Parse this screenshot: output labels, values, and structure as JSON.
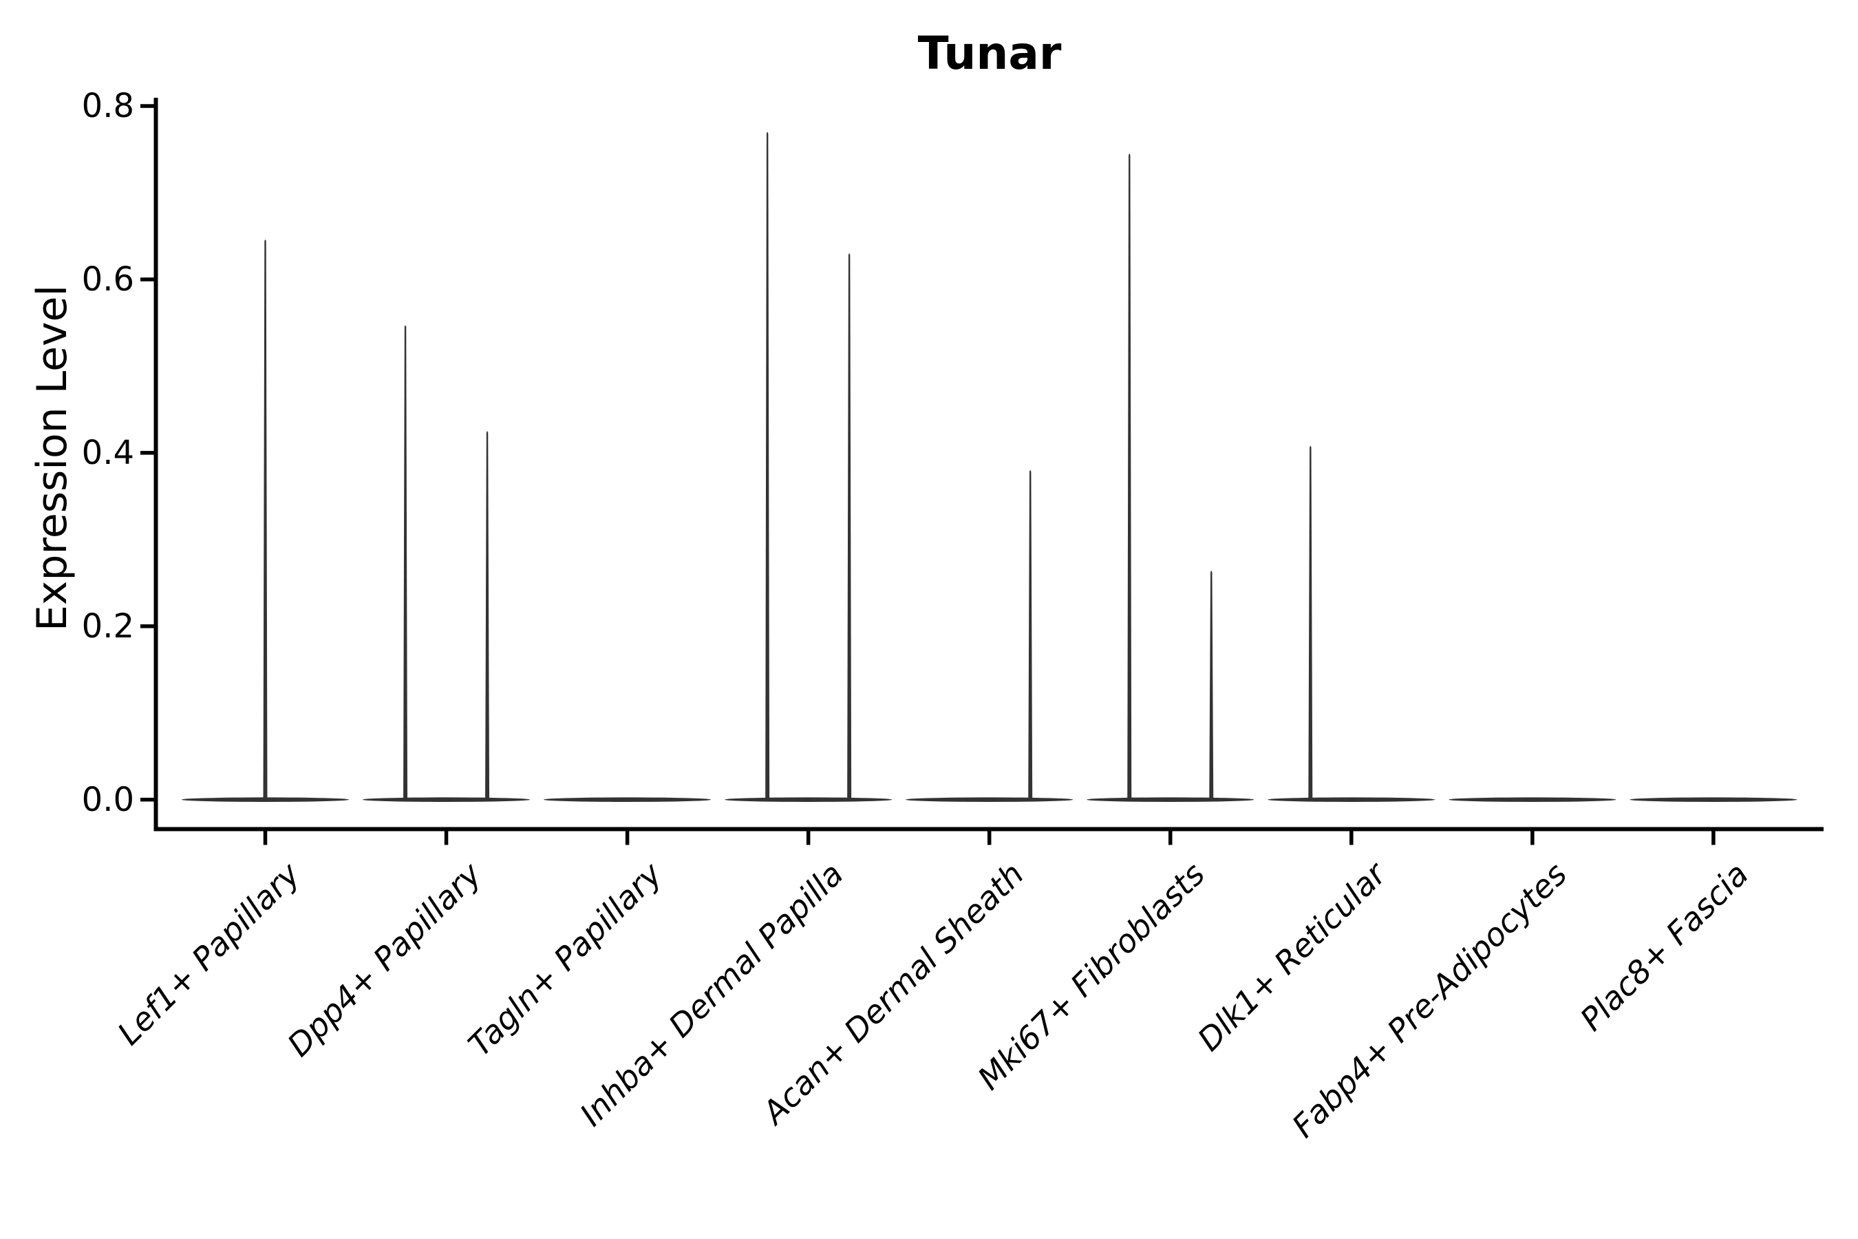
{
  "chart_data": {
    "type": "violin",
    "title": "Tunar",
    "ylabel": "Expression Level",
    "xlabel": "",
    "ylim": [
      0.0,
      0.8
    ],
    "yticks": [
      "0.0",
      "0.2",
      "0.4",
      "0.6",
      "0.8"
    ],
    "ytick_values": [
      0.0,
      0.2,
      0.4,
      0.6,
      0.8
    ],
    "grid": "off",
    "legend": "none",
    "categories": [
      "Lef1+ Papillary",
      "Dpp4+ Papillary",
      "Tagln+ Papillary",
      "Inhba+ Dermal Papilla",
      "Acan+ Dermal Sheath",
      "Mki67+ Fibroblasts",
      "Dlk1+ Reticular",
      "Fabp4+ Pre-Adipocytes",
      "Plac8+ Fascia"
    ],
    "series": [
      {
        "category": "Lef1+ Papillary",
        "violins": [
          {
            "side": "center",
            "max_expression": 0.648
          }
        ],
        "baseline_expression": 0.0
      },
      {
        "category": "Dpp4+ Papillary",
        "violins": [
          {
            "side": "left",
            "max_expression": 0.549
          },
          {
            "side": "right",
            "max_expression": 0.427
          }
        ],
        "baseline_expression": 0.0
      },
      {
        "category": "Tagln+ Papillary",
        "violins": [],
        "baseline_expression": 0.0
      },
      {
        "category": "Inhba+ Dermal Papilla",
        "violins": [
          {
            "side": "left",
            "max_expression": 0.772
          },
          {
            "side": "right",
            "max_expression": 0.632
          }
        ],
        "baseline_expression": 0.0
      },
      {
        "category": "Acan+ Dermal Sheath",
        "violins": [
          {
            "side": "right",
            "max_expression": 0.382
          }
        ],
        "baseline_expression": 0.0
      },
      {
        "category": "Mki67+ Fibroblasts",
        "violins": [
          {
            "side": "left",
            "max_expression": 0.747
          },
          {
            "side": "right",
            "max_expression": 0.266
          }
        ],
        "baseline_expression": 0.0
      },
      {
        "category": "Dlk1+ Reticular",
        "violins": [
          {
            "side": "left",
            "max_expression": 0.41
          }
        ],
        "baseline_expression": 0.0
      },
      {
        "category": "Fabp4+ Pre-Adipocytes",
        "violins": [],
        "baseline_expression": 0.0
      },
      {
        "category": "Plac8+ Fascia",
        "violins": [],
        "baseline_expression": 0.0
      }
    ],
    "note": "Violin bodies are collapsed flat at expression 0; thin tails rise to the max expression values."
  },
  "colors": {
    "violin": "#333333",
    "axis": "#000000",
    "text": "#000000",
    "background": "#ffffff"
  }
}
